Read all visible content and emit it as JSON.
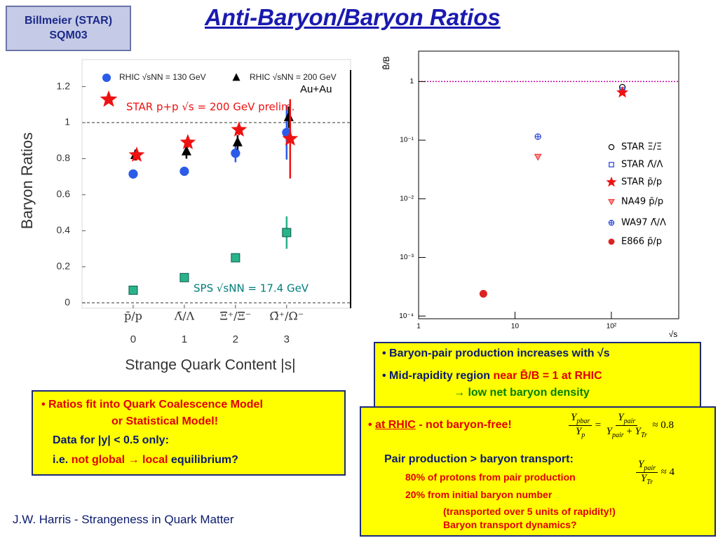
{
  "header": {
    "lines": [
      "Billmeier (STAR)",
      "SQM03"
    ]
  },
  "title": "Anti-Baryon/Baryon Ratios",
  "chart_data": [
    {
      "type": "scatter",
      "ylabel": "Baryon Ratios",
      "xlabel": "Strange Quark Content |s|",
      "x": [
        0,
        1,
        2,
        3
      ],
      "ratio_labels": [
        "p̄/p",
        "Λ̄/Λ",
        "Ξ̄⁺/Ξ⁻",
        "Ω̄⁺/Ω⁻"
      ],
      "xlim": [
        -1,
        4.25
      ],
      "xticks": [
        0,
        1,
        2,
        3
      ],
      "ylim": [
        -0.03,
        1.35
      ],
      "yticks": [
        0,
        0.2,
        0.4,
        0.6,
        0.8,
        1,
        1.2
      ],
      "reference_lines": [
        0,
        1
      ],
      "annotation": "Au+Au",
      "series": [
        {
          "name": "RHIC √sNN = 130 GeV",
          "color": "#2a5ce8",
          "marker": "circle",
          "values": [
            0.715,
            0.73,
            0.83,
            0.945
          ],
          "errors": [
            0.02,
            0.02,
            0.05,
            0.15
          ]
        },
        {
          "name": "RHIC √sNN = 200 GeV",
          "color": "#000000",
          "marker": "triangle",
          "values": [
            0.82,
            0.84,
            0.89,
            1.03
          ],
          "errors": [
            0.03,
            0.04,
            0.04,
            0.06
          ]
        },
        {
          "name": "STAR p+p √s = 200 GeV prelim.",
          "color": "#ee1111",
          "marker": "star",
          "values": [
            0.82,
            0.89,
            0.96,
            0.91
          ],
          "errors": [
            0.03,
            0.03,
            0.03,
            0.22
          ]
        },
        {
          "name": "SPS √sNN = 17.4 GeV",
          "color": "#2ab38a",
          "marker": "square",
          "values": [
            0.07,
            0.14,
            0.25,
            0.39
          ],
          "errors": [
            0.01,
            0.01,
            0.01,
            0.09
          ]
        }
      ]
    },
    {
      "type": "scatter",
      "log_x": true,
      "log_y": true,
      "ylabel": "B̄/B",
      "xlabel": "√s",
      "xlim": [
        1,
        500
      ],
      "xticks": [
        1,
        10,
        {
          "value": 100,
          "label": "10²"
        }
      ],
      "ylim": [
        9e-05,
        3.3
      ],
      "yticks": [
        {
          "value": 0.0001,
          "label": "10⁻⁴"
        },
        {
          "value": 0.001,
          "label": "10⁻³"
        },
        {
          "value": 0.01,
          "label": "10⁻²"
        },
        {
          "value": 0.1,
          "label": "10⁻¹"
        },
        1
      ],
      "reference_lines": [
        1
      ],
      "series": [
        {
          "name": "STAR Ξ̄/Ξ",
          "color": "#000000",
          "marker": "circle-open",
          "x": [
            130
          ],
          "values": [
            0.8
          ]
        },
        {
          "name": "STAR Λ̄/Λ",
          "color": "#1a3ad8",
          "marker": "square-open",
          "x": [
            130
          ],
          "values": [
            0.71
          ]
        },
        {
          "name": "STAR p̄/p",
          "color": "#ee1111",
          "marker": "star",
          "x": [
            130
          ],
          "values": [
            0.65
          ]
        },
        {
          "name": "NA49 p̄/p",
          "color": "#ee2222",
          "marker": "triangle-down",
          "x": [
            17.3
          ],
          "values": [
            0.052
          ]
        },
        {
          "name": "WA97 Λ̄/Λ",
          "color": "#2a4ad8",
          "marker": "cross-circle",
          "x": [
            17.3
          ],
          "values": [
            0.115
          ]
        },
        {
          "name": "E866 p̄/p",
          "color": "#dd2222",
          "marker": "circle",
          "x": [
            4.7
          ],
          "values": [
            0.00024
          ]
        }
      ]
    }
  ],
  "box_left": {
    "lines": [
      [
        "• Ratios fit into Quark Coalescence Model"
      ],
      [
        "or Statistical Model!"
      ],
      [
        "Data for |y| < 0.5 only:"
      ],
      [
        "i.e. ",
        "not global",
        " → ",
        "local",
        " equilibrium?"
      ]
    ]
  },
  "box_top_right": {
    "lines": [
      [
        "• Baryon-pair production increases with √s"
      ],
      [
        "• Mid-rapidity region ",
        "near",
        " B̄/B = 1 at RHIC"
      ],
      [
        "→ low net baryon density"
      ]
    ]
  },
  "box_bottom_right": {
    "lines": [
      [
        "• ",
        "at RHIC",
        " - ",
        "not baryon-free!"
      ],
      [
        "Pair production > baryon transport:"
      ],
      [
        "80% of protons from pair production"
      ],
      [
        "20% from initial baryon number"
      ],
      [
        "(transported over 5 units of rapidity!)"
      ],
      [
        "Baryon transport dynamics?"
      ]
    ],
    "equation_1": {
      "lhs": {
        "num": [
          "Y",
          "pbar"
        ],
        "den": [
          "Y",
          "p"
        ]
      },
      "relation": "=",
      "rhs": {
        "num": [
          "Y",
          "pair"
        ],
        "den": [
          "Y",
          "pair",
          " + ",
          "Y",
          "Tr"
        ]
      },
      "result": "≈ 0.8"
    },
    "equation_2": {
      "num": [
        "Y",
        "pair"
      ],
      "den": [
        "Y",
        "Tr"
      ],
      "result": "≈ 4"
    }
  },
  "footer": "J.W. Harris - Strangeness in Quark Matter"
}
